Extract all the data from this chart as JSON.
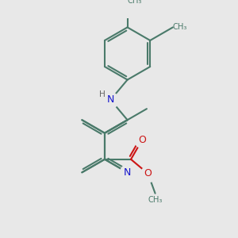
{
  "bg_color": "#e8e8e8",
  "bond_color": "#4a7a6a",
  "n_color": "#1515cc",
  "o_color": "#cc1515",
  "bond_lw": 1.5,
  "dbo": 0.05,
  "fs": 9.0,
  "bl": 0.55,
  "xlim": [
    -2.3,
    2.3
  ],
  "ylim": [
    -2.3,
    2.3
  ]
}
